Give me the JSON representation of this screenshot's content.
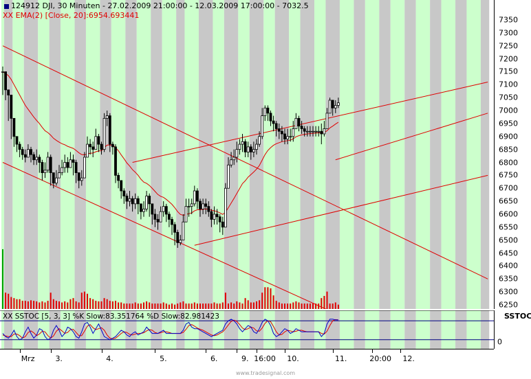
{
  "header": {
    "symbol_line": "124912  DJI, 30 Minuten - 27.02.2009 21:00:00 - 12.03.2009 17:00:00 - 7032.5",
    "ema_line": "XX EMA(2) [Close, 20]:6954.693441"
  },
  "oscillator": {
    "label": "XX SSTOC [5, 3, 3] %K Slow:83.351764 %D Slow:82.981423",
    "axis_label": "SSTOC",
    "zero_label": "0"
  },
  "footer": {
    "watermark": "www.tradesignal.com"
  },
  "colors": {
    "green_band": "#ccffcc",
    "gray_band": "#c8c8c8",
    "trendline": "#e00000",
    "ema": "#e00000",
    "candle": "#000000",
    "volume": "#e00000",
    "volume_green": "#00a000",
    "stoch_k": "#0000cc",
    "stoch_d": "#e00000",
    "ema_text": "#e00000",
    "header_icon": "#000080"
  },
  "chart_data": {
    "type": "candlestick",
    "yaxis": {
      "min": 6250,
      "max": 7350,
      "step": 50,
      "ticks": [
        "7350",
        "7300",
        "7250",
        "7200",
        "7150",
        "7100",
        "7050",
        "7000",
        "6950",
        "6900",
        "6850",
        "6800",
        "6750",
        "6700",
        "6650",
        "6600",
        "6550",
        "6500",
        "6450",
        "6400",
        "6350",
        "6300",
        "6250"
      ]
    },
    "xaxis": {
      "labels": [
        {
          "text": "Mrz",
          "bar": 6
        },
        {
          "text": "3.",
          "bar": 17
        },
        {
          "text": "4.",
          "bar": 35
        },
        {
          "text": "5.",
          "bar": 54
        },
        {
          "text": "6.",
          "bar": 72
        },
        {
          "text": "9.",
          "bar": 83
        },
        {
          "text": "16:00",
          "bar": 90
        },
        {
          "text": "10.",
          "bar": 100
        },
        {
          "text": "11.",
          "bar": 117
        },
        {
          "text": "20:00",
          "bar": 131
        },
        {
          "text": "12.",
          "bar": 141
        }
      ]
    },
    "bands": [
      {
        "start": 0,
        "end": 0,
        "type": "green"
      },
      {
        "start": 1,
        "end": 3,
        "type": "gray"
      },
      {
        "start": 4,
        "end": 7,
        "type": "green"
      },
      {
        "start": 8,
        "end": 12,
        "type": "gray"
      },
      {
        "start": 13,
        "end": 16,
        "type": "green"
      },
      {
        "start": 17,
        "end": 20,
        "type": "gray"
      },
      {
        "start": 21,
        "end": 25,
        "type": "green"
      },
      {
        "start": 26,
        "end": 29,
        "type": "gray"
      },
      {
        "start": 30,
        "end": 34,
        "type": "green"
      },
      {
        "start": 35,
        "end": 38,
        "type": "gray"
      },
      {
        "start": 39,
        "end": 43,
        "type": "green"
      },
      {
        "start": 44,
        "end": 47,
        "type": "gray"
      },
      {
        "start": 48,
        "end": 52,
        "type": "green"
      },
      {
        "start": 53,
        "end": 56,
        "type": "gray"
      },
      {
        "start": 57,
        "end": 61,
        "type": "green"
      },
      {
        "start": 62,
        "end": 64,
        "type": "gray"
      },
      {
        "start": 65,
        "end": 69,
        "type": "green"
      },
      {
        "start": 70,
        "end": 74,
        "type": "gray"
      },
      {
        "start": 75,
        "end": 78,
        "type": "green"
      },
      {
        "start": 79,
        "end": 83,
        "type": "gray"
      },
      {
        "start": 84,
        "end": 87,
        "type": "green"
      },
      {
        "start": 88,
        "end": 92,
        "type": "gray"
      },
      {
        "start": 93,
        "end": 96,
        "type": "green"
      },
      {
        "start": 97,
        "end": 101,
        "type": "gray"
      },
      {
        "start": 102,
        "end": 105,
        "type": "green"
      },
      {
        "start": 106,
        "end": 110,
        "type": "gray"
      },
      {
        "start": 111,
        "end": 114,
        "type": "green"
      },
      {
        "start": 115,
        "end": 119,
        "type": "gray"
      },
      {
        "start": 120,
        "end": 124,
        "type": "green"
      },
      {
        "start": 125,
        "end": 128,
        "type": "gray"
      },
      {
        "start": 129,
        "end": 133,
        "type": "green"
      },
      {
        "start": 134,
        "end": 137,
        "type": "gray"
      },
      {
        "start": 138,
        "end": 142,
        "type": "green"
      },
      {
        "start": 143,
        "end": 146,
        "type": "gray"
      },
      {
        "start": 147,
        "end": 151,
        "type": "green"
      },
      {
        "start": 152,
        "end": 155,
        "type": "gray"
      },
      {
        "start": 156,
        "end": 160,
        "type": "green"
      },
      {
        "start": 161,
        "end": 164,
        "type": "gray"
      },
      {
        "start": 165,
        "end": 169,
        "type": "green"
      },
      {
        "start": 170,
        "end": 172,
        "type": "gray"
      }
    ],
    "closes": [
      7150,
      7080,
      7060,
      6970,
      6900,
      6870,
      6850,
      6830,
      6820,
      6850,
      6830,
      6810,
      6820,
      6800,
      6760,
      6770,
      6820,
      6760,
      6720,
      6740,
      6760,
      6780,
      6800,
      6780,
      6810,
      6800,
      6760,
      6730,
      6740,
      6820,
      6870,
      6860,
      6850,
      6900,
      6870,
      6850,
      6970,
      6980,
      6870,
      6860,
      6750,
      6730,
      6690,
      6670,
      6650,
      6660,
      6640,
      6660,
      6640,
      6610,
      6620,
      6670,
      6640,
      6600,
      6580,
      6570,
      6610,
      6630,
      6600,
      6580,
      6560,
      6530,
      6490,
      6500,
      6570,
      6630,
      6630,
      6640,
      6690,
      6650,
      6620,
      6640,
      6630,
      6610,
      6580,
      6600,
      6590,
      6570,
      6550,
      6700,
      6790,
      6810,
      6820,
      6850,
      6870,
      6880,
      6840,
      6860,
      6840,
      6850,
      6870,
      6900,
      6980,
      7010,
      6990,
      6960,
      6950,
      6930,
      6920,
      6910,
      6890,
      6900,
      6900,
      6930,
      6970,
      6940,
      6930,
      6920,
      6920,
      6920,
      6920,
      6920,
      6920,
      6910,
      6930,
      6990,
      7040,
      7010,
      7020,
      7030
    ],
    "highs": [
      7170,
      7110,
      7080,
      7010,
      6930,
      6900,
      6880,
      6860,
      6850,
      6870,
      6860,
      6840,
      6850,
      6830,
      6810,
      6800,
      6840,
      6830,
      6760,
      6770,
      6790,
      6810,
      6830,
      6820,
      6840,
      6830,
      6810,
      6760,
      6770,
      6840,
      6900,
      6890,
      6880,
      6930,
      6910,
      6880,
      6990,
      7000,
      6990,
      6880,
      6870,
      6760,
      6730,
      6700,
      6680,
      6690,
      6670,
      6680,
      6670,
      6640,
      6650,
      6690,
      6680,
      6640,
      6620,
      6600,
      6630,
      6650,
      6640,
      6610,
      6590,
      6570,
      6540,
      6520,
      6600,
      6660,
      6660,
      6660,
      6710,
      6700,
      6660,
      6660,
      6660,
      6650,
      6620,
      6630,
      6620,
      6600,
      6590,
      6720,
      6820,
      6840,
      6850,
      6880,
      6890,
      6910,
      6890,
      6880,
      6870,
      6880,
      6890,
      6920,
      7010,
      7020,
      7020,
      7000,
      6980,
      6960,
      6950,
      6940,
      6930,
      6930,
      6930,
      6960,
      6990,
      6980,
      6960,
      6940,
      6940,
      6940,
      6940,
      6940,
      6940,
      6950,
      6960,
      7010,
      7050,
      7040,
      7040,
      7050
    ],
    "lows": [
      7060,
      7040,
      6960,
      6890,
      6860,
      6840,
      6820,
      6810,
      6800,
      6820,
      6800,
      6790,
      6790,
      6760,
      6730,
      6740,
      6760,
      6710,
      6700,
      6710,
      6740,
      6750,
      6760,
      6760,
      6780,
      6750,
      6720,
      6700,
      6710,
      6790,
      6840,
      6830,
      6820,
      6860,
      6840,
      6830,
      6840,
      6940,
      6840,
      6830,
      6720,
      6700,
      6660,
      6640,
      6620,
      6630,
      6610,
      6620,
      6600,
      6580,
      6590,
      6610,
      6590,
      6560,
      6550,
      6540,
      6570,
      6590,
      6570,
      6550,
      6520,
      6480,
      6470,
      6480,
      6540,
      6580,
      6590,
      6600,
      6630,
      6620,
      6590,
      6600,
      6600,
      6590,
      6550,
      6560,
      6560,
      6530,
      6520,
      6550,
      6760,
      6780,
      6790,
      6800,
      6830,
      6840,
      6820,
      6820,
      6810,
      6820,
      6830,
      6860,
      6890,
      6960,
      6960,
      6940,
      6920,
      6900,
      6890,
      6880,
      6870,
      6870,
      6880,
      6880,
      6930,
      6920,
      6910,
      6900,
      6900,
      6900,
      6900,
      6900,
      6900,
      6870,
      6900,
      6940,
      7000,
      6980,
      6990,
      7010
    ],
    "ema": [
      7150,
      7143,
      7135,
      7120,
      7100,
      7080,
      7060,
      7040,
      7020,
      7005,
      6990,
      6975,
      6962,
      6950,
      6935,
      6922,
      6915,
      6905,
      6893,
      6885,
      6878,
      6872,
      6868,
      6862,
      6858,
      6854,
      6846,
      6837,
      6830,
      6829,
      6833,
      6835,
      6836,
      6841,
      6844,
      6845,
      6856,
      6867,
      6867,
      6867,
      6857,
      6845,
      6829,
      6814,
      6798,
      6786,
      6772,
      6762,
      6750,
      6735,
      6724,
      6719,
      6711,
      6700,
      6688,
      6676,
      6669,
      6665,
      6657,
      6648,
      6638,
      6625,
      6610,
      6599,
      6596,
      6599,
      6602,
      6605,
      6613,
      6617,
      6617,
      6619,
      6620,
      6619,
      6615,
      6613,
      6610,
      6605,
      6599,
      6608,
      6625,
      6643,
      6661,
      6680,
      6699,
      6718,
      6729,
      6743,
      6753,
      6763,
      6774,
      6788,
      6809,
      6830,
      6846,
      6857,
      6866,
      6872,
      6876,
      6880,
      6882,
      6884,
      6886,
      6891,
      6899,
      6903,
      6906,
      6908,
      6910,
      6911,
      6912,
      6913,
      6914,
      6914,
      6915,
      6922,
      6933,
      6940,
      6948,
      6955
    ],
    "volumes": [
      110,
      30,
      28,
      22,
      20,
      18,
      18,
      15,
      15,
      14,
      16,
      15,
      14,
      12,
      14,
      12,
      15,
      30,
      18,
      15,
      14,
      12,
      14,
      12,
      18,
      20,
      14,
      12,
      30,
      32,
      28,
      20,
      18,
      15,
      14,
      14,
      20,
      18,
      15,
      14,
      15,
      12,
      12,
      10,
      10,
      10,
      10,
      12,
      10,
      10,
      12,
      14,
      12,
      10,
      10,
      10,
      10,
      12,
      10,
      8,
      10,
      8,
      10,
      12,
      14,
      10,
      10,
      10,
      12,
      10,
      10,
      10,
      10,
      10,
      10,
      12,
      10,
      10,
      12,
      30,
      10,
      12,
      10,
      14,
      12,
      10,
      20,
      16,
      12,
      12,
      14,
      16,
      30,
      40,
      40,
      38,
      25,
      15,
      12,
      10,
      10,
      10,
      10,
      12,
      14,
      12,
      10,
      10,
      10,
      10,
      10,
      10,
      10,
      20,
      24,
      32,
      10,
      10,
      12,
      8
    ],
    "volume_max": 120,
    "trendlines": [
      {
        "from": {
          "bar": 0,
          "price": 7250
        },
        "to": {
          "bar": 172,
          "price": 6350
        }
      },
      {
        "from": {
          "bar": 0,
          "price": 6800
        },
        "to": {
          "bar": 172,
          "price": 5950
        }
      },
      {
        "from": {
          "bar": 46,
          "price": 6800
        },
        "to": {
          "bar": 172,
          "price": 7110
        }
      },
      {
        "from": {
          "bar": 68,
          "price": 6480
        },
        "to": {
          "bar": 172,
          "price": 6750
        }
      },
      {
        "from": {
          "bar": 118,
          "price": 6810
        },
        "to": {
          "bar": 172,
          "price": 6990
        }
      }
    ],
    "stoch_k": [
      40,
      30,
      25,
      35,
      50,
      30,
      20,
      25,
      45,
      60,
      40,
      25,
      35,
      55,
      50,
      30,
      20,
      25,
      50,
      65,
      50,
      30,
      40,
      60,
      55,
      45,
      30,
      25,
      45,
      70,
      75,
      60,
      40,
      55,
      70,
      50,
      30,
      25,
      20,
      25,
      30,
      40,
      50,
      45,
      35,
      30,
      40,
      45,
      35,
      40,
      45,
      60,
      50,
      40,
      40,
      40,
      45,
      50,
      40,
      40,
      40,
      40,
      40,
      40,
      50,
      70,
      75,
      60,
      55,
      55,
      50,
      45,
      40,
      35,
      30,
      35,
      40,
      45,
      50,
      70,
      80,
      85,
      80,
      70,
      55,
      45,
      55,
      65,
      60,
      45,
      40,
      55,
      75,
      85,
      80,
      65,
      40,
      30,
      35,
      45,
      55,
      50,
      40,
      45,
      55,
      50,
      45,
      45,
      45,
      45,
      45,
      45,
      45,
      30,
      40,
      70,
      85,
      85,
      83,
      83
    ],
    "stoch_d": [
      35,
      32,
      30,
      30,
      38,
      38,
      33,
      25,
      30,
      43,
      48,
      42,
      33,
      38,
      47,
      45,
      33,
      25,
      32,
      47,
      55,
      48,
      40,
      43,
      52,
      53,
      43,
      33,
      33,
      47,
      63,
      68,
      58,
      52,
      55,
      58,
      50,
      35,
      25,
      23,
      25,
      32,
      40,
      45,
      43,
      37,
      35,
      38,
      40,
      40,
      42,
      48,
      52,
      50,
      43,
      40,
      42,
      45,
      45,
      43,
      40,
      40,
      40,
      40,
      43,
      53,
      65,
      68,
      63,
      57,
      53,
      50,
      45,
      40,
      35,
      33,
      35,
      40,
      45,
      55,
      67,
      78,
      82,
      78,
      68,
      57,
      52,
      55,
      60,
      57,
      48,
      47,
      57,
      72,
      80,
      77,
      62,
      45,
      35,
      37,
      45,
      50,
      48,
      45,
      47,
      50,
      50,
      47,
      45,
      45,
      45,
      45,
      45,
      40,
      38,
      47,
      65,
      80,
      84,
      83
    ],
    "stoch_upper": 80,
    "stoch_lower": 20
  }
}
